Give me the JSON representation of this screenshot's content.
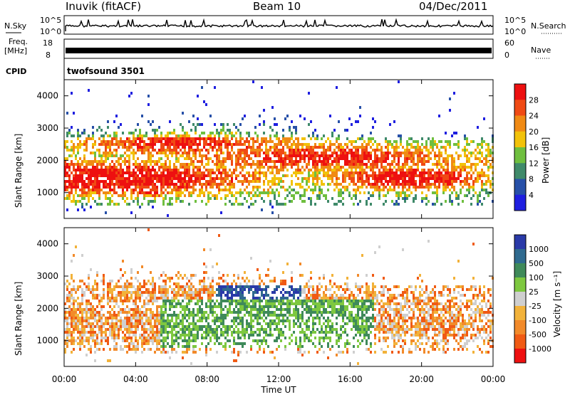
{
  "header": {
    "station": "Inuvik (fitACF)",
    "beam": "Beam 10",
    "date": "04/Dec/2011"
  },
  "noise_panel": {
    "left_label": "N.Sky",
    "right_label": "N.Search",
    "left_ticks": [
      "10^5",
      "10^0"
    ],
    "right_ticks": [
      "10^5",
      "10^0"
    ]
  },
  "freq_panel": {
    "left_label_1": "Freq.",
    "left_label_2": "[MHz]",
    "right_label": "Nave",
    "left_ticks": [
      "18",
      "8"
    ],
    "right_ticks": [
      "60",
      "0"
    ]
  },
  "cpid": {
    "label": "CPID",
    "value": "twofsound 3501"
  },
  "chart_data": [
    {
      "type": "heatmap",
      "title": "Power",
      "ylabel": "Slant Range [km]",
      "ylim": [
        200,
        4500
      ],
      "yticks": [
        "1000",
        "2000",
        "3000",
        "4000"
      ],
      "colorbar_label": "Power [dB]",
      "colorbar_ticks": [
        "4",
        "8",
        "12",
        "16",
        "20",
        "24",
        "28"
      ],
      "colorbar_colors": [
        "#1f1fe0",
        "#2750a8",
        "#3f8a6a",
        "#6fbf3f",
        "#f2c20a",
        "#f08a14",
        "#f04a14",
        "#ee1010"
      ],
      "x": [
        "00:00",
        "04:00",
        "08:00",
        "12:00",
        "16:00",
        "20:00",
        "00:00"
      ],
      "xlim_hours": [
        0,
        24
      ]
    },
    {
      "type": "heatmap",
      "title": "Velocity",
      "ylabel": "Slant Range [km]",
      "ylim": [
        200,
        4500
      ],
      "yticks": [
        "1000",
        "2000",
        "3000",
        "4000"
      ],
      "colorbar_label": "Velocity [m s⁻¹]",
      "colorbar_ticks": [
        "1000",
        "500",
        "100",
        "25",
        "-25",
        "-100",
        "-500",
        "-1000"
      ],
      "colorbar_colors": [
        "#2a3aa8",
        "#2f6a8f",
        "#3f8a5a",
        "#7ec840",
        "#cfcfcf",
        "#f2b23a",
        "#f28a2a",
        "#f05a14",
        "#ee1010"
      ],
      "x": [
        "00:00",
        "04:00",
        "08:00",
        "12:00",
        "16:00",
        "20:00",
        "00:00"
      ],
      "xlim_hours": [
        0,
        24
      ]
    }
  ],
  "x_axis_label": "Time UT",
  "x_ticks": [
    "00:00",
    "04:00",
    "08:00",
    "12:00",
    "16:00",
    "20:00",
    "00:00"
  ]
}
